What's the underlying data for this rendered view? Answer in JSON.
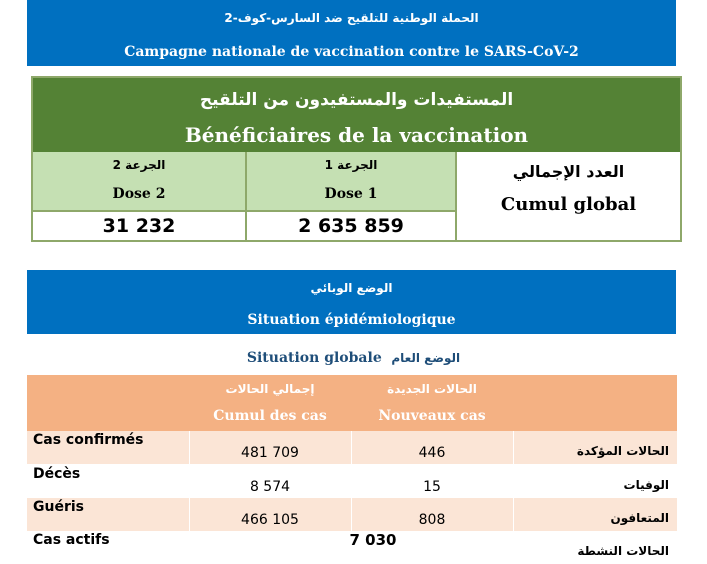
{
  "header": {
    "ar": "الحملة الوطنية للتلقيح ضد السارس-كوف-2",
    "fr": "Campagne nationale de vaccination contre le SARS-CoV-2"
  },
  "beneficiaires": {
    "title_ar": "المستفيدات والمستفيدون من التلقيح",
    "title_fr": "Bénéficiaires de la vaccination",
    "dose2": {
      "ar": "الجرعة 2",
      "fr": "Dose 2",
      "value": "31 232"
    },
    "dose1": {
      "ar": "الجرعة 1",
      "fr": "Dose 1",
      "value": "2 635 859"
    },
    "cumul": {
      "ar": "العدد الإجمالي",
      "fr": "Cumul global"
    }
  },
  "situation": {
    "ar": "الوضع الوبائي",
    "fr": "Situation épidémiologique"
  },
  "globale": {
    "fr": "Situation globale",
    "ar": "الوضع العام"
  },
  "table": {
    "col_cumul": {
      "ar": "إجمالي الحالات",
      "fr": "Cumul des cas"
    },
    "col_nouveaux": {
      "ar": "الحالات الجديدة",
      "fr": "Nouveaux cas"
    },
    "rows": [
      {
        "fr": "Cas confirmés",
        "cumul": "481 709",
        "nouveaux": "446",
        "ar": "الحالات المؤكدة"
      },
      {
        "fr": "Décès",
        "cumul": "8 574",
        "nouveaux": "15",
        "ar": "الوفيات"
      },
      {
        "fr": "Guéris",
        "cumul": "466 105",
        "nouveaux": "808",
        "ar": "المتعافون"
      },
      {
        "fr": "Cas actifs",
        "cumul": "7 030",
        "ar": "الحالات النشطة"
      }
    ]
  },
  "colors": {
    "blue": "#0070c0",
    "green": "#548235",
    "light_green": "#c5e0b3",
    "orange": "#f4b183",
    "light_orange": "#fbe5d6"
  }
}
